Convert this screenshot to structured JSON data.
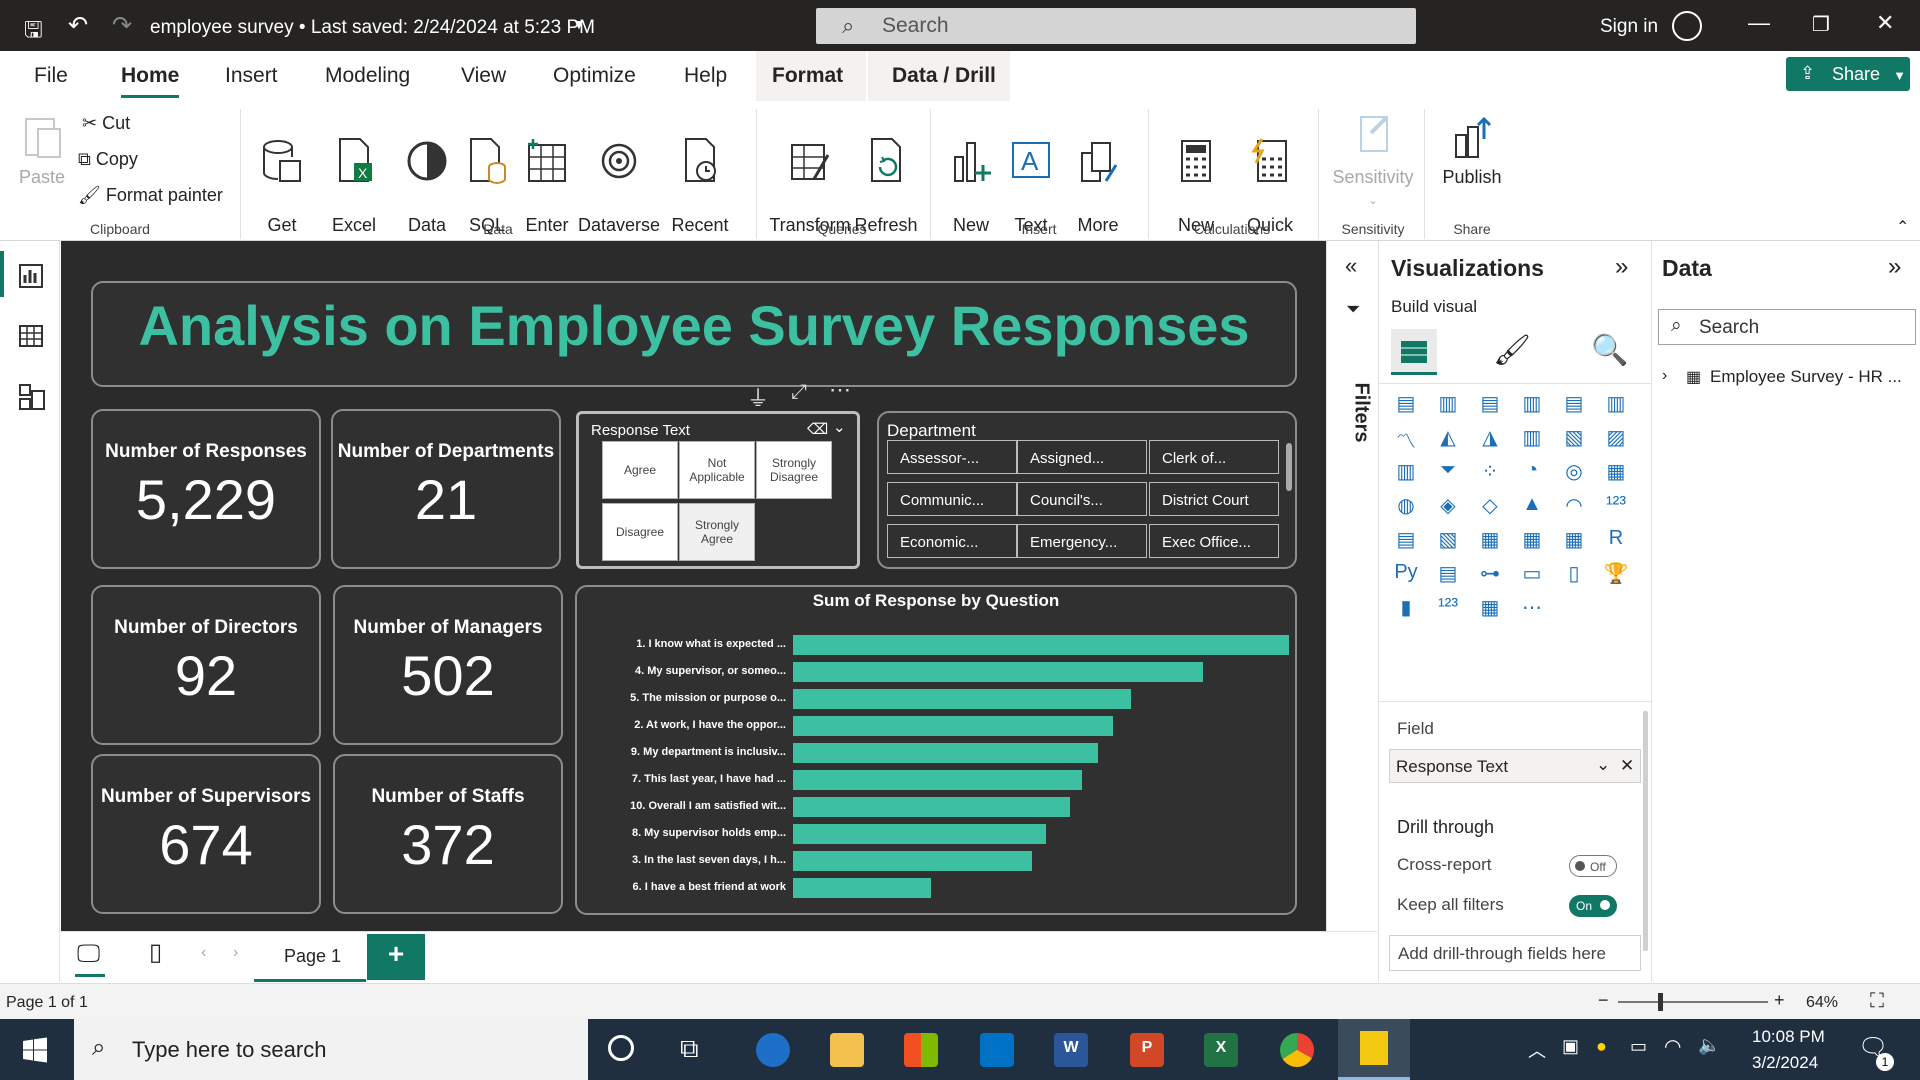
{
  "titlebar": {
    "title": "employee survey  •  Last saved: 2/24/2024 at 5:23 PM",
    "search_placeholder": "Search",
    "signin": "Sign in"
  },
  "tabs": [
    "File",
    "Home",
    "Insert",
    "Modeling",
    "View",
    "Optimize",
    "Help",
    "Format",
    "Data / Drill"
  ],
  "share_label": "Share",
  "ribbon": {
    "paste": "Paste",
    "cut": "Cut",
    "copy": "Copy",
    "format_painter": "Format painter",
    "clipboard_group": "Clipboard",
    "get_data": "Get\ndata",
    "excel_workbook": "Excel\nworkbook",
    "data_hub": "Data\nhub",
    "sql_server": "SQL\nServer",
    "enter_data": "Enter\ndata",
    "dataverse": "Dataverse",
    "recent_sources": "Recent\nsources",
    "data_group": "Data",
    "transform_data": "Transform\ndata",
    "refresh": "Refresh",
    "queries_group": "Queries",
    "new_visual": "New\nvisual",
    "text_box": "Text\nbox",
    "more_visuals": "More\nvisuals",
    "insert_group": "Insert",
    "new_measure": "New\nmeasure",
    "quick_measure": "Quick\nmeasure",
    "calculations_group": "Calculations",
    "sensitivity": "Sensitivity",
    "sensitivity_group": "Sensitivity",
    "publish": "Publish",
    "share_group": "Share"
  },
  "report": {
    "title": "Analysis on Employee Survey Responses",
    "cards": [
      {
        "label": "Number of Responses",
        "value": "5,229"
      },
      {
        "label": "Number of Departments",
        "value": "21"
      },
      {
        "label": "Number of Directors",
        "value": "92"
      },
      {
        "label": "Number of Managers",
        "value": "502"
      },
      {
        "label": "Number of Supervisors",
        "value": "674"
      },
      {
        "label": "Number of Staffs",
        "value": "372"
      }
    ],
    "response_slicer": {
      "title": "Response Text",
      "options": [
        "Agree",
        "Not Applicable",
        "Strongly Disagree",
        "Disagree",
        "Strongly Agree"
      ],
      "selected": "Strongly Agree"
    },
    "department_slicer": {
      "title": "Department",
      "options": [
        "Assessor-...",
        "Assigned...",
        "Clerk of...",
        "Communic...",
        "Council's...",
        "District Court",
        "Economic...",
        "Emergency...",
        "Exec Office..."
      ]
    }
  },
  "chart_data": {
    "type": "bar",
    "title": "Sum of Response by Question",
    "categories": [
      "1. I know what is expected ...",
      "4. My supervisor, or someo...",
      "5. The mission or purpose o...",
      "2. At work, I have the oppor...",
      "9. My department is inclusiv...",
      "7. This last year, I have had ...",
      "10. Overall I am satisfied wit...",
      "8. My supervisor holds emp...",
      "3. In the last seven days, I h...",
      "6. I have a best friend at work"
    ],
    "values": [
      1000,
      826,
      681,
      645,
      614,
      582,
      559,
      510,
      481,
      278
    ],
    "orientation": "horizontal",
    "color": "#3cc0a1"
  },
  "pagebar": {
    "page_tab": "Page 1",
    "add": "+"
  },
  "filters_label": "Filters",
  "viz": {
    "title": "Visualizations",
    "build_visual": "Build visual",
    "field_label": "Field",
    "field_value": "Response Text",
    "drill_through": "Drill through",
    "cross_report": "Cross-report",
    "cross_report_state": "Off",
    "keep_filters": "Keep all filters",
    "keep_filters_state": "On",
    "add_drill": "Add drill-through fields here"
  },
  "data_pane": {
    "title": "Data",
    "search_placeholder": "Search",
    "table": "Employee Survey - HR ..."
  },
  "status": {
    "page": "Page 1 of 1",
    "zoom": "64%"
  },
  "taskbar": {
    "search_placeholder": "Type here to search",
    "time": "10:08 PM",
    "date": "3/2/2024",
    "notif_count": "1"
  },
  "colors": {
    "accent": "#117865",
    "teal": "#3cc0a1",
    "canvas": "#2b2b2b"
  }
}
